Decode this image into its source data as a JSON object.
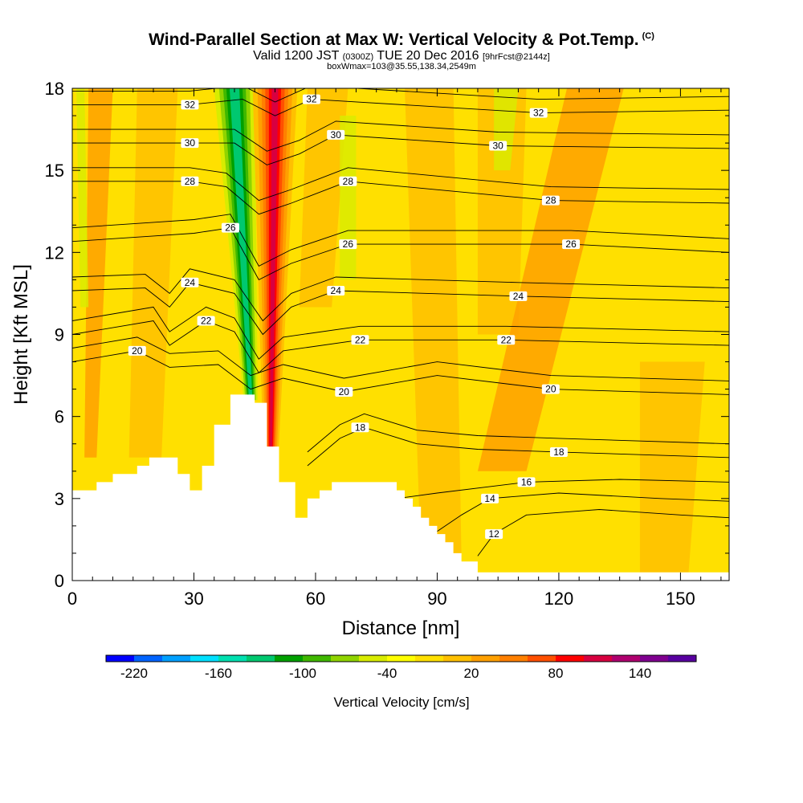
{
  "title": "Wind-Parallel Section at Max W: Vertical Velocity & Pot.Temp.",
  "title_mark": "(C)",
  "subtitle_main": "Valid 1200 JST",
  "subtitle_utc": "(0300Z)",
  "subtitle_date": "TUE 20 Dec 2016",
  "subtitle_fcst": "[9hrFcst@2144z]",
  "subtitle2": "boxWmax=103@35.55,138.34,2549m",
  "chart_data": {
    "type": "heatmap",
    "xlabel": "Distance [nm]",
    "ylabel": "Height [Kft MSL]",
    "xlim": [
      0,
      162
    ],
    "ylim": [
      0,
      18
    ],
    "xticks": [
      0,
      30,
      60,
      90,
      120,
      150
    ],
    "yticks": [
      0,
      3,
      6,
      9,
      12,
      15,
      18
    ],
    "terrain": [
      [
        0,
        3.3
      ],
      [
        6,
        3.3
      ],
      [
        6,
        3.6
      ],
      [
        10,
        3.6
      ],
      [
        10,
        3.9
      ],
      [
        16,
        3.9
      ],
      [
        16,
        4.2
      ],
      [
        19,
        4.2
      ],
      [
        19,
        4.5
      ],
      [
        26,
        4.5
      ],
      [
        26,
        3.9
      ],
      [
        29,
        3.9
      ],
      [
        29,
        3.3
      ],
      [
        32,
        3.3
      ],
      [
        32,
        4.2
      ],
      [
        35,
        4.2
      ],
      [
        35,
        5.7
      ],
      [
        39,
        5.7
      ],
      [
        39,
        6.8
      ],
      [
        45,
        6.8
      ],
      [
        45,
        6.5
      ],
      [
        48,
        6.5
      ],
      [
        48,
        4.9
      ],
      [
        51,
        4.9
      ],
      [
        51,
        3.6
      ],
      [
        55,
        3.6
      ],
      [
        55,
        2.3
      ],
      [
        58,
        2.3
      ],
      [
        58,
        3.0
      ],
      [
        61,
        3.0
      ],
      [
        61,
        3.3
      ],
      [
        64,
        3.3
      ],
      [
        64,
        3.6
      ],
      [
        80,
        3.6
      ],
      [
        80,
        3.3
      ],
      [
        82,
        3.3
      ],
      [
        82,
        3.0
      ],
      [
        84,
        3.0
      ],
      [
        84,
        2.7
      ],
      [
        86,
        2.7
      ],
      [
        86,
        2.3
      ],
      [
        88,
        2.3
      ],
      [
        88,
        2.0
      ],
      [
        90,
        2.0
      ],
      [
        90,
        1.7
      ],
      [
        92,
        1.7
      ],
      [
        92,
        1.4
      ],
      [
        94,
        1.4
      ],
      [
        94,
        1.0
      ],
      [
        96,
        1.0
      ],
      [
        96,
        0.7
      ],
      [
        100,
        0.7
      ],
      [
        100,
        0.3
      ],
      [
        162,
        0.3
      ]
    ],
    "background_velocity": 10,
    "velocity_features": [
      {
        "name": "updraft",
        "value": 110,
        "base_x": 49,
        "base_y": 4.9,
        "top_x": 50,
        "top_y": 18
      },
      {
        "name": "downdraft",
        "value": -110,
        "base_x": 44,
        "base_y": 6.6,
        "top_x": 40,
        "top_y": 18
      }
    ],
    "theta_levels": [
      12,
      14,
      16,
      18,
      20,
      22,
      24,
      26,
      28,
      30,
      32
    ],
    "theta_labels": [
      {
        "text": "32",
        "x": 29,
        "y": 17.4
      },
      {
        "text": "32",
        "x": 59,
        "y": 17.6
      },
      {
        "text": "32",
        "x": 115,
        "y": 17.1
      },
      {
        "text": "30",
        "x": 29,
        "y": 16.0
      },
      {
        "text": "30",
        "x": 65,
        "y": 16.3
      },
      {
        "text": "30",
        "x": 105,
        "y": 15.9
      },
      {
        "text": "28",
        "x": 29,
        "y": 14.6
      },
      {
        "text": "28",
        "x": 68,
        "y": 14.6
      },
      {
        "text": "28",
        "x": 118,
        "y": 13.9
      },
      {
        "text": "26",
        "x": 39,
        "y": 12.9
      },
      {
        "text": "26",
        "x": 68,
        "y": 12.3
      },
      {
        "text": "26",
        "x": 123,
        "y": 12.3
      },
      {
        "text": "24",
        "x": 29,
        "y": 10.9
      },
      {
        "text": "24",
        "x": 65,
        "y": 10.6
      },
      {
        "text": "24",
        "x": 110,
        "y": 10.4
      },
      {
        "text": "22",
        "x": 33,
        "y": 9.5
      },
      {
        "text": "22",
        "x": 71,
        "y": 8.8
      },
      {
        "text": "22",
        "x": 107,
        "y": 8.8
      },
      {
        "text": "20",
        "x": 16,
        "y": 8.4
      },
      {
        "text": "20",
        "x": 67,
        "y": 6.9
      },
      {
        "text": "20",
        "x": 118,
        "y": 7.0
      },
      {
        "text": "18",
        "x": 71,
        "y": 5.6
      },
      {
        "text": "18",
        "x": 120,
        "y": 4.7
      },
      {
        "text": "16",
        "x": 112,
        "y": 3.6
      },
      {
        "text": "14",
        "x": 103,
        "y": 3.0
      },
      {
        "text": "12",
        "x": 104,
        "y": 1.7
      }
    ],
    "colorbar": {
      "label": "Vertical Velocity [cm/s]",
      "tick_labels": [
        "-220",
        "-160",
        "-100",
        "-40",
        "20",
        "80",
        "140"
      ],
      "colors": [
        "#0000ff",
        "#0064ff",
        "#00a0ff",
        "#00e0ff",
        "#00e0b0",
        "#00c870",
        "#00a000",
        "#40b800",
        "#90d400",
        "#d8ec00",
        "#ffff00",
        "#ffe000",
        "#ffc000",
        "#ffa000",
        "#ff8000",
        "#ff5000",
        "#ff0000",
        "#d80040",
        "#b00070",
        "#800090",
        "#5800a0"
      ]
    }
  }
}
